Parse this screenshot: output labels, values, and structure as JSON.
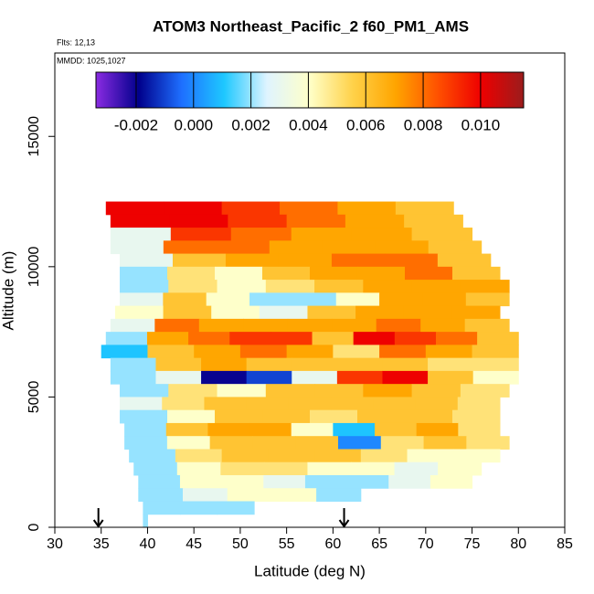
{
  "chart_data": {
    "type": "heatmap",
    "title": "ATOM3 Northeast_Pacific_2 f60_PM1_AMS",
    "flights_label": "Flts: 12,13",
    "dates_label": "MMDD: 1025,1027",
    "x_label": "Latitude (deg N)",
    "y_label": "Altitude (m)",
    "xlim": [
      30,
      85
    ],
    "xticks": [
      30,
      35,
      40,
      45,
      50,
      55,
      60,
      65,
      70,
      75,
      80,
      85
    ],
    "ylim": [
      0,
      18200
    ],
    "yticks": [
      0,
      5000,
      10000,
      15000
    ],
    "clim": [
      -0.0034,
      0.0115
    ],
    "cticks": [
      -0.002,
      {
        "value": 0,
        "label": "0.000"
      },
      0.002,
      0.004,
      0.006,
      0.008,
      {
        "value": 0.01,
        "label": "0.010"
      }
    ],
    "colors": [
      "#8a2be2",
      "#00008b",
      "#1e6fff",
      "#1ec8ff",
      "#dff4ff",
      "#ffffc8",
      "#ffd24a",
      "#ffa500",
      "#ff5000",
      "#ee0000",
      "#9b1c1c"
    ],
    "arrows_x": [
      34.7,
      61.2
    ],
    "rows": [
      {
        "y": [
          12000,
          12500
        ],
        "x": [
          35.5,
          73
        ],
        "values": [
          0.01,
          0.01,
          0.009,
          0.008,
          0.007,
          0.006
        ]
      },
      {
        "y": [
          11500,
          12000
        ],
        "x": [
          36,
          74
        ],
        "values": [
          0.01,
          0.01,
          0.009,
          0.008,
          0.007,
          0.006
        ]
      },
      {
        "y": [
          11000,
          11500
        ],
        "x": [
          36,
          75
        ],
        "values": [
          0.003,
          0.009,
          0.008,
          0.007,
          0.007,
          0.006
        ]
      },
      {
        "y": [
          10500,
          11000
        ],
        "x": [
          36,
          76
        ],
        "values": [
          0.003,
          0.008,
          0.008,
          0.007,
          0.007,
          0.007,
          0.006
        ]
      },
      {
        "y": [
          10000,
          10500
        ],
        "x": [
          37,
          77
        ],
        "values": [
          0.003,
          0.006,
          0.007,
          0.007,
          0.008,
          0.008,
          0.006
        ]
      },
      {
        "y": [
          9500,
          10000
        ],
        "x": [
          37,
          78
        ],
        "values": [
          0.002,
          0.005,
          0.004,
          0.006,
          0.007,
          0.007,
          0.008,
          0.006
        ]
      },
      {
        "y": [
          9000,
          9500
        ],
        "x": [
          37,
          79
        ],
        "values": [
          0.002,
          0.005,
          0.004,
          0.005,
          0.006,
          0.007,
          0.007,
          0.007
        ]
      },
      {
        "y": [
          8500,
          9000
        ],
        "x": [
          37,
          79
        ],
        "values": [
          0.003,
          0.006,
          0.004,
          0.002,
          0.002,
          0.004,
          0.007,
          0.007,
          0.006
        ]
      },
      {
        "y": [
          8000,
          8500
        ],
        "x": [
          36.5,
          78
        ],
        "values": [
          0.004,
          0.006,
          0.004,
          0.003,
          0.006,
          0.007,
          0.007,
          0.007
        ]
      },
      {
        "y": [
          7500,
          8000
        ],
        "x": [
          36,
          79
        ],
        "values": [
          0.003,
          0.008,
          0.007,
          0.007,
          0.007,
          0.007,
          0.008,
          0.007,
          0.006
        ]
      },
      {
        "y": [
          7000,
          7500
        ],
        "x": [
          35.5,
          80
        ],
        "values": [
          0.002,
          0.007,
          0.008,
          0.009,
          0.009,
          0.006,
          0.01,
          0.009,
          0.008,
          0.006
        ]
      },
      {
        "y": [
          6500,
          7000
        ],
        "x": [
          35,
          80
        ],
        "values": [
          0.001,
          0.006,
          0.007,
          0.008,
          0.007,
          0.005,
          0.008,
          0.007,
          0.006
        ]
      },
      {
        "y": [
          6000,
          6500
        ],
        "x": [
          36,
          80
        ],
        "values": [
          0.002,
          0.006,
          0.007,
          0.006,
          0.006,
          0.006,
          0.006,
          0.005,
          0.005
        ]
      },
      {
        "y": [
          5500,
          6000
        ],
        "x": [
          36,
          80
        ],
        "values": [
          0.002,
          0.003,
          -0.002,
          -0.001,
          0.003,
          0.009,
          0.01,
          0.006,
          0.004
        ]
      },
      {
        "y": [
          5000,
          5500
        ],
        "x": [
          37,
          79
        ],
        "values": [
          0.002,
          0.005,
          0.004,
          0.006,
          0.006,
          0.007,
          0.006,
          0.005
        ]
      },
      {
        "y": [
          4500,
          5000
        ],
        "x": [
          37,
          78
        ],
        "values": [
          0.003,
          0.005,
          0.006,
          0.006,
          0.006,
          0.006,
          0.006,
          0.006,
          0.005
        ]
      },
      {
        "y": [
          4000,
          4500
        ],
        "x": [
          37,
          78
        ],
        "values": [
          0.002,
          0.004,
          0.006,
          0.006,
          0.005,
          0.006,
          0.006,
          0.005
        ]
      },
      {
        "y": [
          3500,
          4000
        ],
        "x": [
          37.5,
          78
        ],
        "values": [
          0.002,
          0.006,
          0.007,
          0.007,
          0.004,
          0.001,
          0.006,
          0.007,
          0.005
        ]
      },
      {
        "y": [
          3000,
          3500
        ],
        "x": [
          37.5,
          79
        ],
        "values": [
          0.002,
          0.004,
          0.006,
          0.006,
          0.006,
          0.0,
          0.005,
          0.006,
          0.005
        ]
      },
      {
        "y": [
          2500,
          3000
        ],
        "x": [
          38,
          78
        ],
        "values": [
          0.002,
          0.005,
          0.006,
          0.006,
          0.006,
          0.005,
          0.004,
          0.004
        ]
      },
      {
        "y": [
          2000,
          2500
        ],
        "x": [
          38.5,
          76
        ],
        "values": [
          0.002,
          0.004,
          0.005,
          0.005,
          0.004,
          0.004,
          0.003,
          0.004
        ]
      },
      {
        "y": [
          1500,
          2000
        ],
        "x": [
          39,
          75
        ],
        "values": [
          0.002,
          0.004,
          0.004,
          0.003,
          0.002,
          0.002,
          0.003,
          0.004
        ]
      },
      {
        "y": [
          1000,
          1500
        ],
        "x": [
          39,
          63
        ],
        "values": [
          0.002,
          0.003,
          0.004,
          0.004,
          0.002
        ]
      },
      {
        "y": [
          500,
          1000
        ],
        "x": [
          39.5,
          51.5
        ],
        "values": [
          0.002,
          0.002,
          0.002
        ]
      },
      {
        "y": [
          0,
          500
        ],
        "x": [
          39.5,
          40
        ],
        "values": [
          0.002
        ]
      }
    ]
  }
}
